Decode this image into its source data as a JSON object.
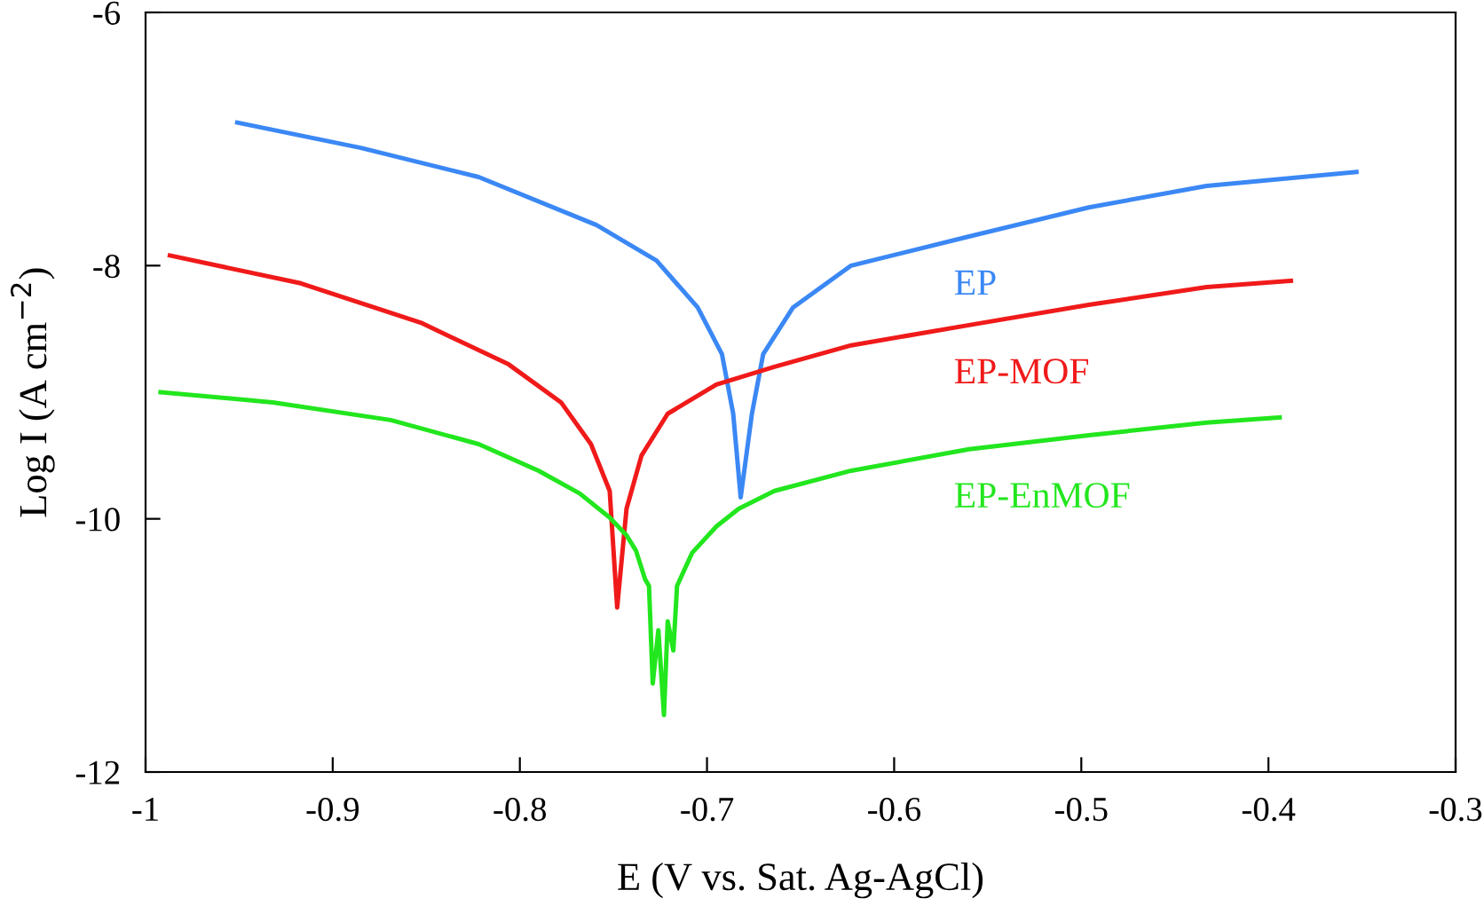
{
  "chart_data": {
    "type": "line",
    "xlabel": "E (V vs. Sat. Ag-AgCl)",
    "ylabel": "Log I (A cm$^{−2}$)",
    "xlim": [
      -1,
      -0.3
    ],
    "xticks": [
      -1,
      -0.9,
      -0.8,
      -0.7,
      -0.6,
      -0.5,
      -0.4,
      -0.3
    ],
    "ylim": [
      -12,
      -6
    ],
    "yticks": [
      -12,
      -10,
      -8,
      -6
    ],
    "grid": false,
    "legend": false,
    "marker": "none",
    "line_style": "solid",
    "series": [
      {
        "name": "EP",
        "color": "#3b88f5",
        "x": [
          -0.951,
          -0.885,
          -0.822,
          -0.759,
          -0.727,
          -0.705,
          -0.692,
          -0.686,
          -0.682,
          -0.676,
          -0.67,
          -0.654,
          -0.623,
          -0.56,
          -0.496,
          -0.433,
          -0.353
        ],
        "values": [
          -6.87,
          -7.07,
          -7.3,
          -7.68,
          -7.96,
          -8.33,
          -8.7,
          -9.17,
          -9.83,
          -9.17,
          -8.7,
          -8.33,
          -8.0,
          -7.77,
          -7.54,
          -7.37,
          -7.26
        ]
      },
      {
        "name": "EP-MOF",
        "color": "#f01a1a",
        "x": [
          -0.987,
          -0.917,
          -0.853,
          -0.806,
          -0.778,
          -0.762,
          -0.752,
          -0.748,
          -0.743,
          -0.735,
          -0.721,
          -0.695,
          -0.664,
          -0.623,
          -0.56,
          -0.496,
          -0.433,
          -0.388
        ],
        "values": [
          -7.92,
          -8.14,
          -8.45,
          -8.78,
          -9.08,
          -9.41,
          -9.78,
          -10.7,
          -9.92,
          -9.5,
          -9.17,
          -8.94,
          -8.8,
          -8.63,
          -8.47,
          -8.31,
          -8.17,
          -8.12
        ]
      },
      {
        "name": "EP-EnMOF",
        "color": "#22e61e",
        "x": [
          -0.992,
          -0.932,
          -0.869,
          -0.822,
          -0.79,
          -0.768,
          -0.752,
          -0.743,
          -0.738,
          -0.733,
          -0.731,
          -0.729,
          -0.726,
          -0.723,
          -0.721,
          -0.718,
          -0.716,
          -0.708,
          -0.695,
          -0.683,
          -0.664,
          -0.623,
          -0.56,
          -0.496,
          -0.433,
          -0.394
        ],
        "values": [
          -9.0,
          -9.08,
          -9.22,
          -9.41,
          -9.62,
          -9.8,
          -9.99,
          -10.13,
          -10.25,
          -10.48,
          -10.53,
          -11.3,
          -10.88,
          -11.55,
          -10.81,
          -11.04,
          -10.53,
          -10.27,
          -10.06,
          -9.92,
          -9.78,
          -9.62,
          -9.45,
          -9.34,
          -9.24,
          -9.2
        ]
      }
    ]
  }
}
